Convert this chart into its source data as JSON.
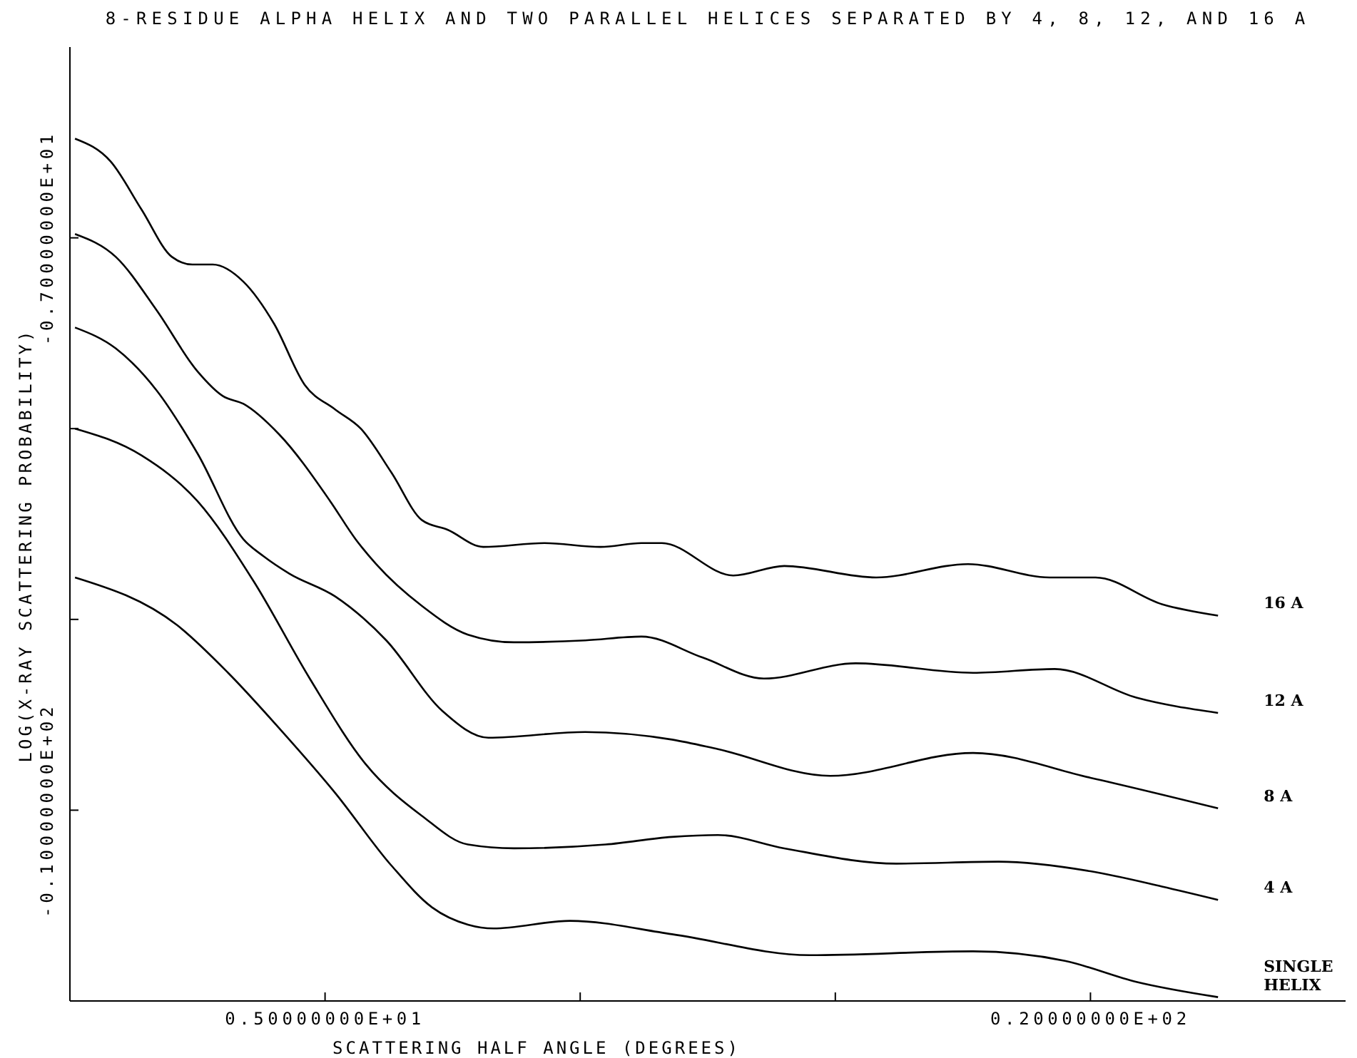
{
  "chart_data": {
    "type": "line",
    "title": "8-RESIDUE ALPHA HELIX AND TWO PARALLEL HELICES SEPARATED BY 4, 8, 12, AND 16 A",
    "xlabel": "SCATTERING HALF ANGLE (DEGREES)",
    "ylabel": "LOG(X-RAY SCATTERING PROBABILITY)",
    "xlim": [
      0,
      25
    ],
    "ylim": [
      -11,
      -6
    ],
    "xticks": [
      {
        "value": 5,
        "label": "0.50000000E+01"
      },
      {
        "value": 10,
        "label": null
      },
      {
        "value": 15,
        "label": null
      },
      {
        "value": 20,
        "label": "0.20000000E+02"
      }
    ],
    "yticks": [
      {
        "value": -10,
        "label": "-0.10000000E+02"
      },
      {
        "value": -9,
        "label": null
      },
      {
        "value": -8,
        "label": null
      },
      {
        "value": -7,
        "label": "-0.70000000E+01"
      }
    ],
    "series": [
      {
        "name": "16 A",
        "color": "#000000",
        "x": [
          0.1,
          0.8,
          1.4,
          2.0,
          2.4,
          2.8,
          3.4,
          4.0,
          4.6,
          5.2,
          5.7,
          6.3,
          6.9,
          7.4,
          8.1,
          9.3,
          10.4,
          11.2,
          11.6,
          13.0,
          14.0,
          15.8,
          17.6,
          19.2,
          20.1,
          21.4,
          22.5
        ],
        "values": [
          -6.48,
          -6.6,
          -6.85,
          -7.1,
          -7.14,
          -7.14,
          -7.23,
          -7.45,
          -7.77,
          -7.9,
          -8.0,
          -8.23,
          -8.48,
          -8.53,
          -8.62,
          -8.6,
          -8.62,
          -8.6,
          -8.6,
          -8.77,
          -8.72,
          -8.78,
          -8.71,
          -8.78,
          -8.78,
          -8.92,
          -8.98
        ]
      },
      {
        "name": "12 A",
        "color": "#000000",
        "x": [
          0.1,
          0.9,
          1.7,
          2.5,
          3.0,
          3.4,
          4.1,
          5.1,
          5.6,
          6.0,
          6.9,
          7.8,
          8.7,
          10.1,
          11.2,
          12.4,
          13.6,
          15.4,
          17.7,
          19.3,
          20.9,
          22.5
        ],
        "values": [
          -6.98,
          -7.1,
          -7.38,
          -7.7,
          -7.83,
          -7.87,
          -8.03,
          -8.38,
          -8.58,
          -8.71,
          -8.93,
          -9.08,
          -9.12,
          -9.11,
          -9.09,
          -9.2,
          -9.31,
          -9.23,
          -9.28,
          -9.26,
          -9.41,
          -9.49
        ]
      },
      {
        "name": "8 A",
        "color": "#000000",
        "x": [
          0.1,
          0.9,
          1.7,
          2.5,
          3.4,
          3.8,
          4.3,
          5.2,
          6.2,
          7.3,
          8.2,
          10.1,
          11.8,
          12.7,
          14.9,
          17.7,
          20.0,
          22.5
        ],
        "values": [
          -7.47,
          -7.58,
          -7.8,
          -8.13,
          -8.58,
          -8.67,
          -8.76,
          -8.88,
          -9.11,
          -9.48,
          -9.62,
          -9.59,
          -9.63,
          -9.68,
          -9.82,
          -9.7,
          -9.83,
          -9.99
        ]
      },
      {
        "name": "4 A",
        "color": "#000000",
        "x": [
          0.1,
          1.4,
          2.5,
          3.6,
          4.7,
          5.8,
          6.9,
          7.8,
          8.7,
          10.5,
          11.8,
          12.7,
          14.0,
          16.2,
          18.2,
          20.0,
          21.4,
          22.5
        ],
        "values": [
          -8.0,
          -8.14,
          -8.38,
          -8.8,
          -9.31,
          -9.76,
          -10.03,
          -10.18,
          -10.2,
          -10.18,
          -10.14,
          -10.13,
          -10.2,
          -10.28,
          -10.27,
          -10.32,
          -10.4,
          -10.47
        ]
      },
      {
        "name": "SINGLE HELIX",
        "color": "#000000",
        "x": [
          0.1,
          2.1,
          3.1,
          4.1,
          5.2,
          6.3,
          7.1,
          7.8,
          8.3,
          9.8,
          11.8,
          14.5,
          17.7,
          19.5,
          20.9,
          22.5
        ],
        "values": [
          -8.78,
          -9.03,
          -9.28,
          -9.57,
          -9.91,
          -10.29,
          -10.51,
          -10.6,
          -10.62,
          -10.58,
          -10.65,
          -10.76,
          -10.74,
          -10.79,
          -10.9,
          -10.98
        ]
      }
    ]
  }
}
